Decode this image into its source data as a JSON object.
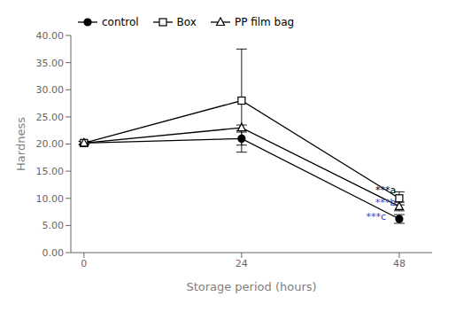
{
  "chart_data": {
    "type": "line",
    "x": [
      0,
      24,
      48
    ],
    "series": [
      {
        "name": "control",
        "values": [
          20.2,
          21.0,
          6.2
        ],
        "errors": [
          0.3,
          1.2,
          0.8
        ],
        "color": "black",
        "marker": "circle"
      },
      {
        "name": "Box",
        "values": [
          20.2,
          28.0,
          10.0
        ],
        "errors": [
          0.3,
          9.5,
          1.2
        ],
        "color": "black",
        "marker": "open square"
      },
      {
        "name": "PP film bag",
        "values": [
          20.2,
          23.0,
          8.5
        ],
        "errors": [
          0.3,
          0.5,
          0.8
        ],
        "color": "black",
        "marker": "open triangle"
      }
    ],
    "annotations": [
      {
        "text": "***a",
        "x": 47.5,
        "y": 11.5,
        "color": "black"
      },
      {
        "text": "***b",
        "x": 47.5,
        "y": 9.2,
        "color": "#4444cc"
      },
      {
        "text": "***c",
        "x": 46.0,
        "y": 6.5,
        "color": "#4444cc"
      }
    ],
    "xlabel": "Storage period (hours)",
    "ylabel": "Hardness",
    "xlim": [
      -2,
      53
    ],
    "xticks": [
      0,
      24,
      48
    ],
    "ylim": [
      0,
      40
    ],
    "yticks": [
      {
        "value": 0,
        "label": "0.00"
      },
      {
        "value": 5,
        "label": "5.00"
      },
      {
        "value": 10,
        "label": "10.00"
      },
      {
        "value": 15,
        "label": "15.00"
      },
      {
        "value": 20,
        "label": "20.00"
      },
      {
        "value": 25,
        "label": "25.00"
      },
      {
        "value": 30,
        "label": "30.00"
      },
      {
        "value": 35,
        "label": "35.00"
      },
      {
        "value": 40,
        "label": "40.00"
      }
    ],
    "legend": "upper left"
  }
}
